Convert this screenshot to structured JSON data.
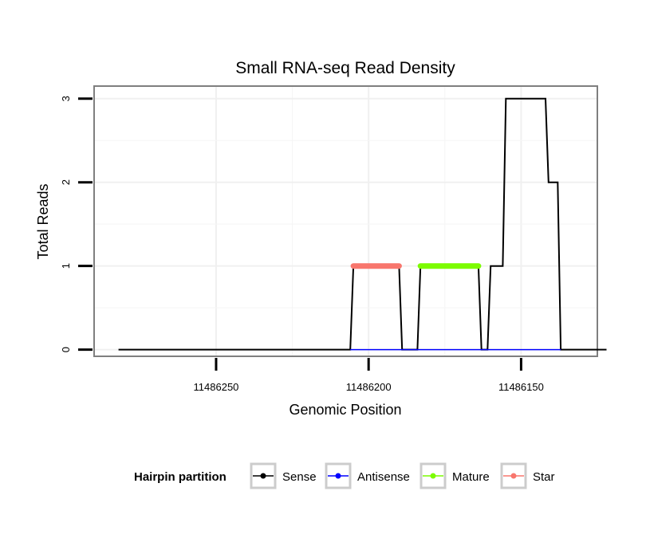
{
  "chart_data": {
    "type": "line",
    "title": "Small RNA-seq Read Density",
    "xlabel": "Genomic Position",
    "ylabel": "Total Reads",
    "x_reversed": true,
    "xlim": [
      11486290,
      11486125
    ],
    "ylim": [
      -0.08,
      3.15
    ],
    "x_ticks": [
      11486250,
      11486200,
      11486150
    ],
    "x_tick_labels": [
      "11486250",
      "11486200",
      "11486150"
    ],
    "y_ticks": [
      0,
      1,
      2,
      3
    ],
    "y_tick_labels": [
      "0",
      "1",
      "2",
      "3"
    ],
    "grid": true,
    "series": [
      {
        "name": "Sense",
        "color": "#000000",
        "points": [
          [
            11486282,
            0
          ],
          [
            11486206,
            0
          ],
          [
            11486205,
            1
          ],
          [
            11486190,
            1
          ],
          [
            11486189,
            0
          ],
          [
            11486184,
            0
          ],
          [
            11486183,
            1
          ],
          [
            11486164,
            1
          ],
          [
            11486163,
            0
          ],
          [
            11486161,
            0
          ],
          [
            11486160,
            1
          ],
          [
            11486156,
            1
          ],
          [
            11486155,
            3
          ],
          [
            11486142,
            3
          ],
          [
            11486141,
            2
          ],
          [
            11486138,
            2
          ],
          [
            11486137,
            0
          ],
          [
            11486122,
            0
          ]
        ]
      },
      {
        "name": "Antisense",
        "color": "#0000ff",
        "points": [
          [
            11486206,
            0
          ],
          [
            11486137,
            0
          ]
        ]
      },
      {
        "name": "Mature",
        "color": "#7cfc00",
        "points": [
          [
            11486183,
            1
          ],
          [
            11486164,
            1
          ]
        ]
      },
      {
        "name": "Star",
        "color": "#f8766d",
        "points": [
          [
            11486205,
            1
          ],
          [
            11486190,
            1
          ]
        ]
      }
    ],
    "legend": {
      "title": "Hairpin partition",
      "position": "bottom",
      "entries": [
        "Sense",
        "Antisense",
        "Mature",
        "Star"
      ]
    }
  }
}
